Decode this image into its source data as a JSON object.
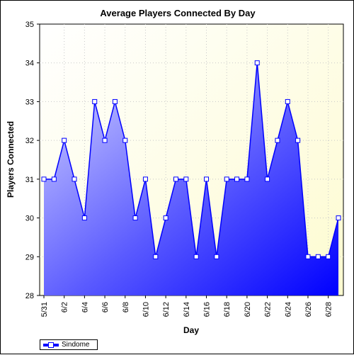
{
  "chart_data": {
    "type": "area",
    "title": "Average Players Connected By Day",
    "xlabel": "Day",
    "ylabel": "Players Connected",
    "ylim": [
      28,
      35
    ],
    "yticks": [
      28,
      29,
      30,
      31,
      32,
      33,
      34,
      35
    ],
    "grid": true,
    "legend_position": "bottom-left",
    "x": [
      "5/31",
      "6/1",
      "6/2",
      "6/3",
      "6/4",
      "6/5",
      "6/6",
      "6/7",
      "6/8",
      "6/9",
      "6/10",
      "6/11",
      "6/12",
      "6/13",
      "6/14",
      "6/15",
      "6/16",
      "6/17",
      "6/18",
      "6/19",
      "6/20",
      "6/21",
      "6/22",
      "6/23",
      "6/24",
      "6/25",
      "6/26",
      "6/27",
      "6/28",
      "6/29"
    ],
    "x_tick_labels": [
      "5/31",
      "6/2",
      "6/4",
      "6/6",
      "6/8",
      "6/10",
      "6/12",
      "6/14",
      "6/16",
      "6/18",
      "6/20",
      "6/22",
      "6/24",
      "6/26",
      "6/28"
    ],
    "series": [
      {
        "name": "Sindome",
        "color": "#0000ff",
        "values": [
          31,
          31,
          32,
          31,
          30,
          33,
          32,
          33,
          32,
          30,
          31,
          29,
          30,
          31,
          31,
          29,
          31,
          29,
          31,
          31,
          31,
          34,
          31,
          32,
          33,
          32,
          29,
          29,
          29,
          30
        ]
      }
    ]
  }
}
